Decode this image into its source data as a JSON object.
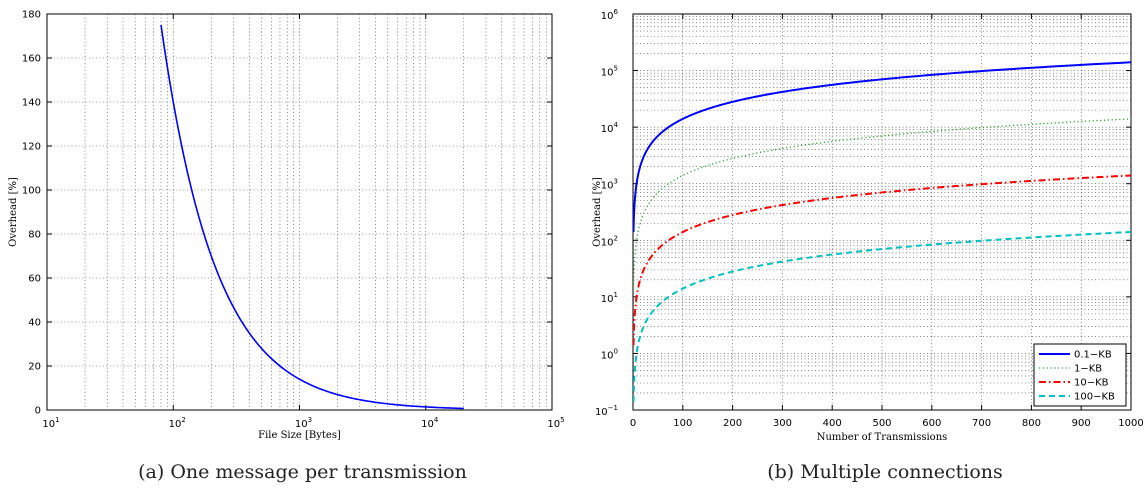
{
  "chart_data": [
    {
      "type": "line",
      "caption": "(a)  One message per transmission",
      "xlabel": "File Size [Bytes]",
      "ylabel": "Overhead [%]",
      "xscale": "log",
      "xlim": [
        10,
        100000
      ],
      "ylim": [
        0,
        180
      ],
      "grid": true,
      "x_tick_labels": [
        {
          "base": "10",
          "exp": "1"
        },
        {
          "base": "10",
          "exp": "2"
        },
        {
          "base": "10",
          "exp": "3"
        },
        {
          "base": "10",
          "exp": "4"
        },
        {
          "base": "10",
          "exp": "5"
        }
      ],
      "y_ticks": [
        0,
        20,
        40,
        60,
        80,
        100,
        120,
        140,
        160,
        180
      ],
      "series": [
        {
          "color": "#0000ff",
          "style": "solid",
          "x": [
            80,
            90,
            100,
            120,
            150,
            200,
            250,
            300,
            400,
            500,
            700,
            1000,
            1500,
            2000,
            3000,
            5000,
            10000,
            20000
          ],
          "y": [
            175,
            155.6,
            140,
            116.7,
            93.3,
            70,
            56,
            46.7,
            35,
            28,
            20,
            14,
            9.3,
            7,
            4.7,
            2.8,
            1.4,
            0.7
          ]
        }
      ]
    },
    {
      "type": "line",
      "caption": "(b)  Multiple connections",
      "xlabel": "Number of Transmissions",
      "ylabel": "Overhead [%]",
      "yscale": "log",
      "xlim": [
        0,
        1000
      ],
      "ylim": [
        0.1,
        1000000
      ],
      "grid": true,
      "x_ticks": [
        0,
        100,
        200,
        300,
        400,
        500,
        600,
        700,
        800,
        900,
        1000
      ],
      "y_tick_labels": [
        {
          "base": "10",
          "exp": "−1"
        },
        {
          "base": "10",
          "exp": "0"
        },
        {
          "base": "10",
          "exp": "1"
        },
        {
          "base": "10",
          "exp": "2"
        },
        {
          "base": "10",
          "exp": "3"
        },
        {
          "base": "10",
          "exp": "4"
        },
        {
          "base": "10",
          "exp": "5"
        },
        {
          "base": "10",
          "exp": "6"
        }
      ],
      "legend": {
        "position": "bottom-right"
      },
      "series": [
        {
          "name": "0.1−KB",
          "color": "#0000ff",
          "style": "solid",
          "x": [
            1,
            2,
            5,
            10,
            20,
            50,
            100,
            200,
            300,
            400,
            500,
            600,
            700,
            800,
            900,
            1000
          ],
          "y": [
            140,
            280,
            700,
            1400,
            2800,
            7000,
            14000,
            28000,
            42000,
            56000,
            70000,
            84000,
            98000,
            112000,
            126000,
            140000
          ]
        },
        {
          "name": "1−KB",
          "color": "#2ca02c",
          "style": "dotted",
          "x": [
            1,
            2,
            5,
            10,
            20,
            50,
            100,
            200,
            300,
            400,
            500,
            600,
            700,
            800,
            900,
            1000
          ],
          "y": [
            14,
            28,
            70,
            140,
            280,
            700,
            1400,
            2800,
            4200,
            5600,
            7000,
            8400,
            9800,
            11200,
            12600,
            14000
          ]
        },
        {
          "name": "10−KB",
          "color": "#ff0000",
          "style": "dashdot",
          "x": [
            1,
            2,
            5,
            10,
            20,
            50,
            100,
            200,
            300,
            400,
            500,
            600,
            700,
            800,
            900,
            1000
          ],
          "y": [
            1.4,
            2.8,
            7,
            14,
            28,
            70,
            140,
            280,
            420,
            560,
            700,
            840,
            980,
            1120,
            1260,
            1400
          ]
        },
        {
          "name": "100−KB",
          "color": "#00bfbf",
          "style": "dashed",
          "x": [
            1,
            2,
            5,
            10,
            20,
            50,
            100,
            200,
            300,
            400,
            500,
            600,
            700,
            800,
            900,
            1000
          ],
          "y": [
            0.14,
            0.28,
            0.7,
            1.4,
            2.8,
            7,
            14,
            28,
            42,
            56,
            70,
            84,
            98,
            112,
            126,
            140
          ]
        }
      ]
    }
  ]
}
